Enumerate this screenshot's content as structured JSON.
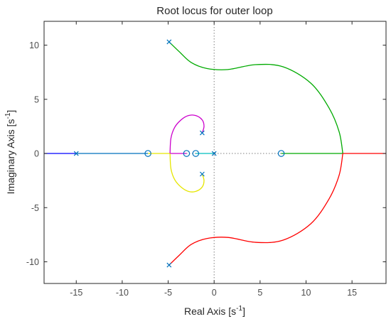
{
  "chart_data": {
    "type": "line",
    "title": "Root locus for outer loop",
    "xlabel": "Real Axis [s",
    "xlabel_sup": "-1",
    "xlabel_end": "]",
    "ylabel": "Imaginary Axis [s",
    "ylabel_sup": "-1",
    "ylabel_end": "]",
    "xlim": [
      -18.5,
      18.7
    ],
    "ylim": [
      -12,
      12.2
    ],
    "xticks": [
      -15,
      -10,
      -5,
      0,
      5,
      10,
      15
    ],
    "yticks": [
      -10,
      -5,
      0,
      5,
      10
    ],
    "grid": false,
    "reference_lines": {
      "x": 0,
      "y": 0,
      "style": "dotted"
    },
    "poles": [
      {
        "x": -15,
        "y": 0
      },
      {
        "x": -4.9,
        "y": 10.3
      },
      {
        "x": -4.9,
        "y": -10.3
      },
      {
        "x": -1.3,
        "y": 1.9
      },
      {
        "x": -1.3,
        "y": -1.9
      },
      {
        "x": 0,
        "y": 0
      }
    ],
    "zeros": [
      {
        "x": -7.2,
        "y": 0
      },
      {
        "x": -3,
        "y": 0
      },
      {
        "x": -2,
        "y": 0
      },
      {
        "x": 7.3,
        "y": 0
      }
    ],
    "series": [
      {
        "color": "#0000ff",
        "points": [
          [
            -18.5,
            0
          ],
          [
            -15,
            0
          ]
        ]
      },
      {
        "color": "#0072bd",
        "points": [
          [
            -15,
            0
          ],
          [
            -7.2,
            0
          ]
        ]
      },
      {
        "color": "#e6e600",
        "points": [
          [
            -7.2,
            0
          ],
          [
            -4.8,
            0
          ]
        ]
      },
      {
        "color": "#cc00cc",
        "points": [
          [
            -3,
            0
          ],
          [
            -4.8,
            0
          ]
        ]
      },
      {
        "color": "#00bfbf",
        "points": [
          [
            0,
            0
          ],
          [
            -2,
            0
          ]
        ]
      },
      {
        "color": "#00aa00",
        "points": [
          [
            7.3,
            0
          ],
          [
            14,
            0
          ]
        ]
      },
      {
        "color": "#ff0000",
        "points": [
          [
            14,
            0
          ],
          [
            18.7,
            0
          ]
        ]
      },
      {
        "color": "#cc00cc",
        "points": [
          [
            -1.3,
            1.9
          ],
          [
            -1.1,
            2.5
          ],
          [
            -1.3,
            3.1
          ],
          [
            -2,
            3.5
          ],
          [
            -2.8,
            3.5
          ],
          [
            -3.6,
            3.1
          ],
          [
            -4.3,
            2.4
          ],
          [
            -4.7,
            1.4
          ],
          [
            -4.8,
            0
          ]
        ]
      },
      {
        "color": "#e6e600",
        "points": [
          [
            -1.3,
            -1.9
          ],
          [
            -1.1,
            -2.5
          ],
          [
            -1.3,
            -3.1
          ],
          [
            -2,
            -3.5
          ],
          [
            -2.8,
            -3.5
          ],
          [
            -3.6,
            -3.1
          ],
          [
            -4.3,
            -2.4
          ],
          [
            -4.7,
            -1.4
          ],
          [
            -4.8,
            0
          ]
        ]
      },
      {
        "color": "#00aa00",
        "points": [
          [
            -4.9,
            10.3
          ],
          [
            -3.8,
            9.4
          ],
          [
            -2.5,
            8.4
          ],
          [
            -0.8,
            7.85
          ],
          [
            1.5,
            7.75
          ],
          [
            4.5,
            8.2
          ],
          [
            7.5,
            8
          ],
          [
            10.5,
            6.5
          ],
          [
            12.5,
            4.2
          ],
          [
            13.6,
            2
          ],
          [
            14,
            0
          ]
        ]
      },
      {
        "color": "#ff0000",
        "points": [
          [
            -4.9,
            -10.3
          ],
          [
            -3.8,
            -9.4
          ],
          [
            -2.5,
            -8.4
          ],
          [
            -0.8,
            -7.85
          ],
          [
            1.5,
            -7.75
          ],
          [
            4.5,
            -8.2
          ],
          [
            7.5,
            -8
          ],
          [
            10.5,
            -6.5
          ],
          [
            12.5,
            -4.2
          ],
          [
            13.6,
            -2
          ],
          [
            14,
            0
          ]
        ]
      }
    ]
  }
}
